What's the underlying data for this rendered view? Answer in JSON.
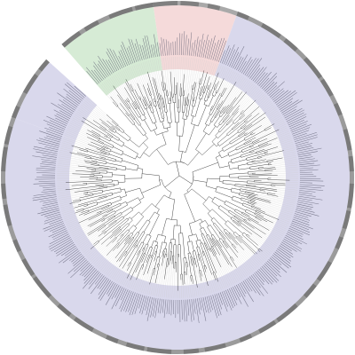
{
  "tree": {
    "leaf_count": 360,
    "groups": [
      {
        "name": "",
        "start_deg": 200,
        "end_deg": 222,
        "fill": "#d9d8ec",
        "band": "#8a8a8a"
      },
      {
        "name": "",
        "start_deg": 229,
        "end_deg": 262,
        "fill": "#d6ebd5",
        "band": "#8a8a8a"
      },
      {
        "name": "",
        "start_deg": 262,
        "end_deg": 290,
        "fill": "#f5dada",
        "band": "#9a9a9a"
      },
      {
        "name": "",
        "start_deg": 290,
        "end_deg": 560,
        "fill": "#d9d8ec",
        "band": "#8a8a8a"
      }
    ],
    "colors": {
      "branch": "#333333",
      "leaf_line": "#c8c8c8",
      "label": "#5a5a6e"
    }
  }
}
